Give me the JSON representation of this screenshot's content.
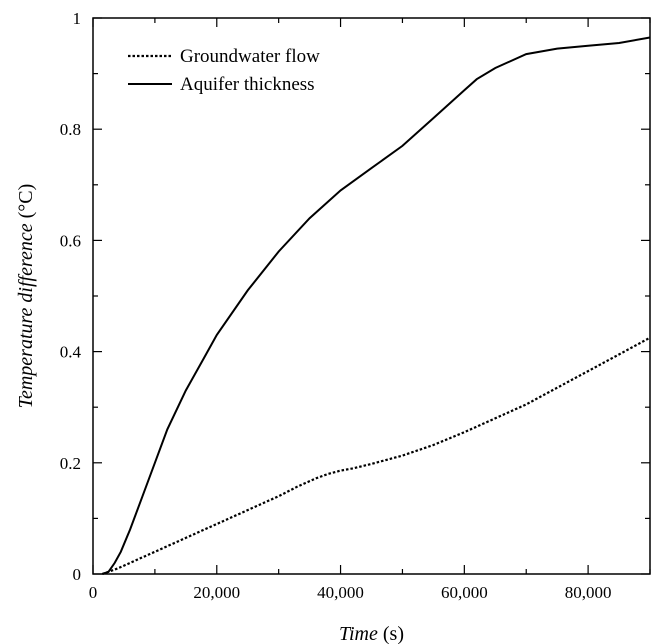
{
  "chart_data": {
    "type": "line",
    "xlabel_italic": "Time",
    "xlabel_unit": " (s)",
    "ylabel_italic": "Temperature difference",
    "ylabel_unit": " (°C)",
    "xlim": [
      0,
      90000
    ],
    "ylim": [
      0,
      1
    ],
    "xticks": [
      0,
      20000,
      40000,
      60000,
      80000
    ],
    "xtick_labels": [
      "0",
      "20,000",
      "40,000",
      "60,000",
      "80,000"
    ],
    "yticks": [
      0,
      0.2,
      0.4,
      0.6,
      0.8,
      1
    ],
    "ytick_labels": [
      "0",
      "0.2",
      "0.4",
      "0.6",
      "0.8",
      "1"
    ],
    "grid": false,
    "legend_position": "top-left",
    "series": [
      {
        "name": "Groundwater flow",
        "style": "dotted",
        "x": [
          1500,
          2500,
          4000,
          6000,
          8000,
          10000,
          12000,
          15000,
          18000,
          20000,
          22000,
          25000,
          28000,
          30000,
          33000,
          36000,
          38000,
          40000,
          42000,
          45000,
          50000,
          55000,
          60000,
          65000,
          70000,
          75000,
          80000,
          85000,
          90000
        ],
        "y": [
          0.0,
          0.004,
          0.01,
          0.02,
          0.03,
          0.04,
          0.05,
          0.065,
          0.08,
          0.09,
          0.1,
          0.115,
          0.13,
          0.14,
          0.157,
          0.172,
          0.18,
          0.186,
          0.19,
          0.198,
          0.213,
          0.232,
          0.255,
          0.28,
          0.305,
          0.335,
          0.365,
          0.395,
          0.425
        ]
      },
      {
        "name": "Aquifer thickness",
        "style": "solid",
        "x": [
          1500,
          2500,
          3500,
          4500,
          6000,
          8000,
          10000,
          12000,
          15000,
          18000,
          20000,
          25000,
          30000,
          35000,
          40000,
          45000,
          50000,
          55000,
          60000,
          62000,
          65000,
          70000,
          75000,
          80000,
          85000,
          90000
        ],
        "y": [
          0.0,
          0.004,
          0.02,
          0.04,
          0.08,
          0.14,
          0.2,
          0.26,
          0.33,
          0.39,
          0.43,
          0.51,
          0.58,
          0.64,
          0.69,
          0.73,
          0.77,
          0.82,
          0.87,
          0.89,
          0.91,
          0.935,
          0.945,
          0.95,
          0.955,
          0.965
        ]
      }
    ]
  }
}
